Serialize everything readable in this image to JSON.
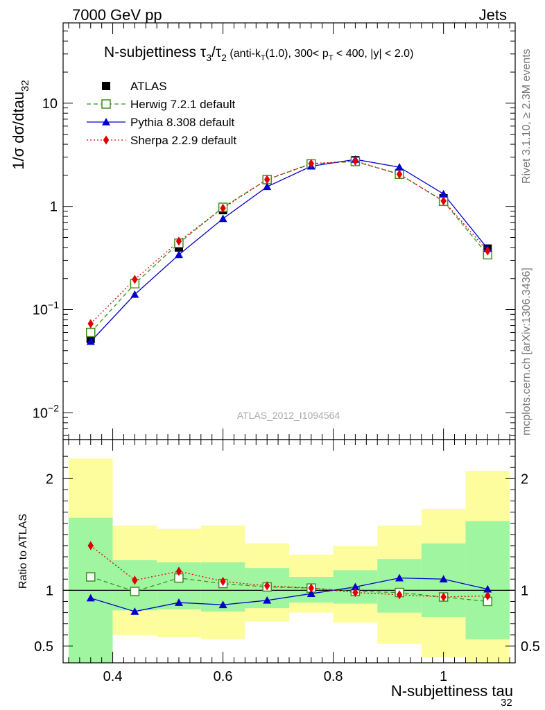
{
  "header": {
    "left": "7000 GeV pp",
    "right": "Jets",
    "side_top": "Rivet 3.1.10, ≥ 2.3M events",
    "side_bottom": "mcplots.cern.ch [arXiv:1306.3436]"
  },
  "chart_data": [
    {
      "type": "line",
      "title_main": "N-subjettiness τ",
      "title_parts": [
        "3",
        "/",
        "τ",
        "2",
        " (anti-k",
        "T",
        "(1.0), 300< p",
        "T",
        " < 400, |y| < 2.0)"
      ],
      "ylabel_main": "1/σ dσ/dtau",
      "ylabel_sub": "32",
      "watermark": "ATLAS_2012_I1094564",
      "yscale": "log",
      "ylim": [
        0.0055,
        60
      ],
      "xlim": [
        0.31,
        1.13
      ],
      "yticks": [
        {
          "value": 0.01,
          "label": "10",
          "exp": "−2"
        },
        {
          "value": 0.1,
          "label": "10",
          "exp": "−1"
        },
        {
          "value": 1,
          "label": "1",
          "exp": ""
        },
        {
          "value": 10,
          "label": "10",
          "exp": ""
        }
      ],
      "legend_placement": "top-left",
      "x": [
        0.36,
        0.44,
        0.52,
        0.6,
        0.68,
        0.76,
        0.84,
        0.92,
        1.0,
        1.08
      ],
      "series": [
        {
          "name": "ATLAS",
          "color": "#000000",
          "marker": "filled-square",
          "values": [
            0.052,
            0.18,
            0.4,
            0.92,
            1.8,
            2.55,
            2.8,
            2.1,
            1.2,
            0.39
          ]
        },
        {
          "name": "Herwig 7.2.1 default",
          "color": "#3a8f1c",
          "marker": "open-square",
          "dash": "6,4",
          "values": [
            0.06,
            0.178,
            0.44,
            0.98,
            1.82,
            2.58,
            2.72,
            2.05,
            1.12,
            0.34
          ]
        },
        {
          "name": "Pythia 8.308 default",
          "color": "#0000cc",
          "marker": "filled-triangle",
          "dash": "",
          "values": [
            0.049,
            0.14,
            0.34,
            0.76,
            1.55,
            2.45,
            2.85,
            2.4,
            1.32,
            0.39
          ]
        },
        {
          "name": "Sherpa 2.2.9 default",
          "color": "#e00000",
          "marker": "filled-diamond",
          "dash": "2,3",
          "values": [
            0.073,
            0.196,
            0.46,
            0.96,
            1.82,
            2.6,
            2.75,
            2.05,
            1.13,
            0.37
          ]
        }
      ]
    },
    {
      "type": "line",
      "ylabel": "Ratio to ATLAS",
      "xlabel_main": "N-subjettiness tau",
      "xlabel_sub": "32",
      "ylim": [
        0.35,
        2.35
      ],
      "xlim": [
        0.31,
        1.13
      ],
      "yticks": [
        {
          "value": 0.5,
          "label": "0.5"
        },
        {
          "value": 1,
          "label": "1"
        },
        {
          "value": 2,
          "label": "2"
        }
      ],
      "xticks": [
        {
          "value": 0.4,
          "label": "0.4"
        },
        {
          "value": 0.6,
          "label": "0.6"
        },
        {
          "value": 0.8,
          "label": "0.8"
        },
        {
          "value": 1.0,
          "label": "1"
        }
      ],
      "reference_line": 1,
      "bin_edges": [
        0.32,
        0.4,
        0.48,
        0.56,
        0.64,
        0.72,
        0.8,
        0.88,
        0.96,
        1.04,
        1.12
      ],
      "uncertainty_bands": {
        "stat_color": "#a0f5a0",
        "total_color": "#fdfd9e",
        "inner_lower": [
          0.35,
          0.82,
          0.83,
          0.81,
          0.84,
          0.89,
          0.88,
          0.8,
          0.76,
          0.56
        ],
        "inner_upper": [
          1.65,
          1.27,
          1.25,
          1.25,
          1.2,
          1.12,
          1.18,
          1.28,
          1.42,
          1.62
        ],
        "outer_lower": [
          0.35,
          0.6,
          0.58,
          0.56,
          0.72,
          0.8,
          0.71,
          0.52,
          0.4,
          0.35
        ],
        "outer_upper": [
          2.18,
          1.58,
          1.55,
          1.58,
          1.42,
          1.32,
          1.4,
          1.58,
          1.73,
          2.07
        ]
      },
      "x": [
        0.36,
        0.44,
        0.52,
        0.6,
        0.68,
        0.76,
        0.84,
        0.92,
        1.0,
        1.08
      ],
      "series": [
        {
          "name": "Herwig 7.2.1 default",
          "color": "#3a8f1c",
          "marker": "open-square",
          "dash": "6,4",
          "values": [
            1.12,
            0.99,
            1.11,
            1.06,
            1.03,
            1.02,
            0.99,
            0.98,
            0.94,
            0.9
          ]
        },
        {
          "name": "Pythia 8.308 default",
          "color": "#0000cc",
          "marker": "filled-triangle",
          "dash": "",
          "values": [
            0.93,
            0.81,
            0.89,
            0.87,
            0.91,
            0.97,
            1.03,
            1.11,
            1.1,
            1.01
          ]
        },
        {
          "name": "Sherpa 2.2.9 default",
          "color": "#e00000",
          "marker": "filled-diamond",
          "dash": "2,3",
          "values": [
            1.4,
            1.09,
            1.17,
            1.08,
            1.04,
            1.02,
            0.98,
            0.96,
            0.94,
            0.95
          ]
        }
      ]
    }
  ]
}
